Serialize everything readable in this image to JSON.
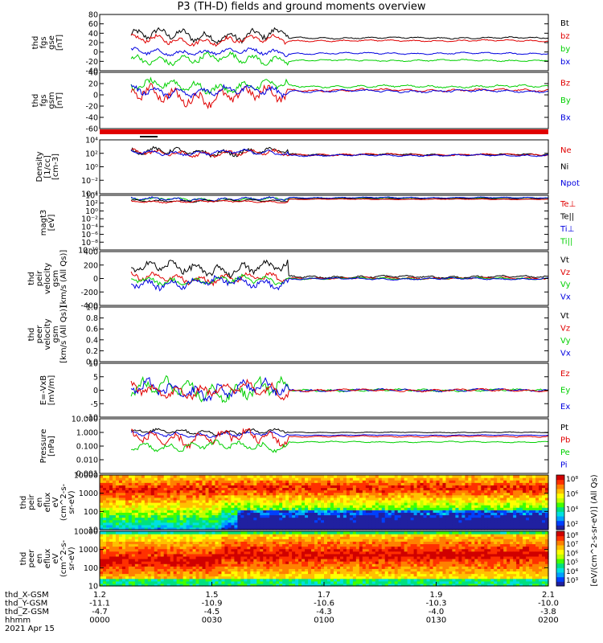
{
  "title": "P3 (TH-D) fields and ground moments overview",
  "colors": {
    "black": "#000000",
    "red": "#e00000",
    "green": "#00d000",
    "blue": "#0000e0"
  },
  "chart_data": [
    {
      "type": "line",
      "id": "fgs-gse",
      "ylabel": [
        "thd",
        "fgs",
        "gse",
        "[nT]"
      ],
      "ylim": [
        -40,
        80
      ],
      "yscale": "linear",
      "yticks": [
        "80",
        "60",
        "40",
        "20",
        "0",
        "-20",
        "-40"
      ],
      "legend": [
        {
          "name": "Bt",
          "color": "#000000"
        },
        {
          "name": "bz",
          "color": "#e00000"
        },
        {
          "name": "by",
          "color": "#00d000"
        },
        {
          "name": "bx",
          "color": "#0000e0"
        }
      ],
      "series": [
        {
          "name": "Bt",
          "color": "#000000",
          "base": 35,
          "amp": 14,
          "late_base": 30,
          "late_amp": 2
        },
        {
          "name": "bz",
          "color": "#e00000",
          "base": 25,
          "amp": 10,
          "late_base": 24,
          "late_amp": 2
        },
        {
          "name": "bx",
          "color": "#0000e0",
          "base": 0,
          "amp": 8,
          "late_base": -3,
          "late_amp": 2
        },
        {
          "name": "by",
          "color": "#00d000",
          "base": -15,
          "amp": 12,
          "late_base": -18,
          "late_amp": 2
        }
      ]
    },
    {
      "type": "line",
      "id": "fgs-gsm",
      "ylabel": [
        "thd",
        "fgs",
        "gsm",
        "[nT]"
      ],
      "ylim": [
        -80,
        40
      ],
      "yscale": "linear",
      "yticks": [
        "40",
        "20",
        "0",
        "-20",
        "-40",
        "-60"
      ],
      "legend": [
        {
          "name": "Bz",
          "color": "#e00000"
        },
        {
          "name": "By",
          "color": "#00d000"
        },
        {
          "name": "Bx",
          "color": "#0000e0"
        }
      ],
      "series": [
        {
          "name": "By",
          "color": "#00d000",
          "base": 10,
          "amp": 14,
          "late_base": 10,
          "late_amp": 3
        },
        {
          "name": "Bz",
          "color": "#e00000",
          "base": -10,
          "amp": 20,
          "late_base": 2,
          "late_amp": 3
        },
        {
          "name": "Bx",
          "color": "#0000e0",
          "base": 0,
          "amp": 12,
          "late_base": 0,
          "late_amp": 3
        }
      ]
    },
    {
      "type": "line",
      "id": "density",
      "ylabel": [
        "Density",
        "[1/cc]",
        "[cm-3]"
      ],
      "ylim": [
        -4,
        4
      ],
      "yscale": "log",
      "yticks": [
        "10⁴",
        "10²",
        "10⁰",
        "10⁻²",
        "10⁻⁴"
      ],
      "legend": [
        {
          "name": "Ne",
          "color": "#e00000"
        },
        {
          "name": "Ni",
          "color": "#000000"
        },
        {
          "name": "Npot",
          "color": "#0000e0"
        }
      ],
      "series": [
        {
          "name": "Ni",
          "color": "#000000",
          "base": 2.2,
          "amp": 0.6,
          "late_base": 1.8,
          "late_amp": 0.15
        },
        {
          "name": "Ne",
          "color": "#e00000",
          "base": 2.0,
          "amp": 0.5,
          "late_base": 1.8,
          "late_amp": 0.15
        },
        {
          "name": "Npot",
          "color": "#0000e0",
          "base": 2.1,
          "amp": 0.4,
          "late_base": 1.7,
          "late_amp": 0.15
        }
      ]
    },
    {
      "type": "line",
      "id": "temperature",
      "ylabel": [
        "magt3",
        "[eV]"
      ],
      "ylim": [
        -10,
        4
      ],
      "yscale": "log",
      "yticks": [
        "10⁴",
        "10²",
        "10⁰",
        "10⁻²",
        "10⁻⁴",
        "10⁻⁶",
        "10⁻⁸",
        "10⁻¹⁰"
      ],
      "legend": [
        {
          "name": "Te⊥",
          "color": "#e00000"
        },
        {
          "name": "Te||",
          "color": "#000000"
        },
        {
          "name": "Ti⊥",
          "color": "#0000e0"
        },
        {
          "name": "Ti||",
          "color": "#00d000"
        }
      ],
      "series": [
        {
          "name": "Ti||",
          "color": "#00d000",
          "base": 3.0,
          "amp": 0.4,
          "late_base": 3.3,
          "late_amp": 0.15
        },
        {
          "name": "Ti⊥",
          "color": "#0000e0",
          "base": 3.0,
          "amp": 0.5,
          "late_base": 3.4,
          "late_amp": 0.15
        },
        {
          "name": "Te||",
          "color": "#000000",
          "base": 2.6,
          "amp": 0.3,
          "late_base": 3.1,
          "late_amp": 0.1
        },
        {
          "name": "Te⊥",
          "color": "#e00000",
          "base": 2.4,
          "amp": 0.3,
          "late_base": 3.0,
          "late_amp": 0.1
        }
      ]
    },
    {
      "type": "line",
      "id": "peir-velocity",
      "ylabel": [
        "thd",
        "peir",
        "velocity",
        "gsm",
        "[km/s (All Qs)]"
      ],
      "ylim": [
        -400,
        400
      ],
      "yscale": "linear",
      "yticks": [
        "400",
        "200",
        "0",
        "-200",
        "-400"
      ],
      "legend": [
        {
          "name": "Vt",
          "color": "#000000"
        },
        {
          "name": "Vz",
          "color": "#e00000"
        },
        {
          "name": "Vy",
          "color": "#00d000"
        },
        {
          "name": "Vx",
          "color": "#0000e0"
        }
      ],
      "series": [
        {
          "name": "Vt",
          "color": "#000000",
          "base": 150,
          "amp": 110,
          "late_base": 25,
          "late_amp": 20
        },
        {
          "name": "Vz",
          "color": "#e00000",
          "base": 0,
          "amp": 80,
          "late_base": 5,
          "late_amp": 15
        },
        {
          "name": "Vy",
          "color": "#00d000",
          "base": -30,
          "amp": 70,
          "late_base": 0,
          "late_amp": 15
        },
        {
          "name": "Vx",
          "color": "#0000e0",
          "base": -60,
          "amp": 90,
          "late_base": -5,
          "late_amp": 15
        }
      ]
    },
    {
      "type": "line",
      "id": "peer-velocity",
      "ylabel": [
        "thd",
        "peer",
        "velocity",
        "gsm",
        "[km/s (All Qs)]"
      ],
      "ylim": [
        0,
        1
      ],
      "yscale": "linear",
      "yticks": [
        "1.0",
        "0.8",
        "0.6",
        "0.4",
        "0.2",
        "0.0"
      ],
      "legend": [
        {
          "name": "Vt",
          "color": "#000000"
        },
        {
          "name": "Vz",
          "color": "#e00000"
        },
        {
          "name": "Vy",
          "color": "#00d000"
        },
        {
          "name": "Vx",
          "color": "#0000e0"
        }
      ],
      "series": []
    },
    {
      "type": "line",
      "id": "efield",
      "ylabel": [
        "E=-VxB",
        "[mV/m]"
      ],
      "ylim": [
        -10,
        10
      ],
      "yscale": "linear",
      "yticks": [
        "10",
        "5",
        "0",
        "-5",
        "-10"
      ],
      "legend": [
        {
          "name": "Ez",
          "color": "#e00000"
        },
        {
          "name": "Ey",
          "color": "#00d000"
        },
        {
          "name": "Ex",
          "color": "#0000e0"
        }
      ],
      "series": [
        {
          "name": "Ey",
          "color": "#00d000",
          "base": 0,
          "amp": 4,
          "late_base": 0,
          "late_amp": 0.5
        },
        {
          "name": "Ex",
          "color": "#0000e0",
          "base": 0,
          "amp": 3.5,
          "late_base": 0,
          "late_amp": 0.5
        },
        {
          "name": "Ez",
          "color": "#e00000",
          "base": 0,
          "amp": 3,
          "late_base": 0,
          "late_amp": 0.5
        }
      ]
    },
    {
      "type": "line",
      "id": "pressure",
      "ylabel": [
        "Pressure",
        "[nPa]"
      ],
      "ylim": [
        -3,
        1
      ],
      "yscale": "log",
      "yticks": [
        "10.000",
        "1.000",
        "0.100",
        "0.010",
        "0.001"
      ],
      "legend": [
        {
          "name": "Pt",
          "color": "#000000"
        },
        {
          "name": "Pb",
          "color": "#e00000"
        },
        {
          "name": "Pe",
          "color": "#00d000"
        },
        {
          "name": "Pi",
          "color": "#0000e0"
        }
      ],
      "series": [
        {
          "name": "Pt",
          "color": "#000000",
          "base": 0.05,
          "amp": 0.2,
          "late_base": 0.0,
          "late_amp": 0.03
        },
        {
          "name": "Pi",
          "color": "#0000e0",
          "base": -0.15,
          "amp": 0.2,
          "late_base": -0.2,
          "late_amp": 0.03
        },
        {
          "name": "Pb",
          "color": "#e00000",
          "base": -0.4,
          "amp": 0.6,
          "late_base": -0.3,
          "late_amp": 0.05
        },
        {
          "name": "Pe",
          "color": "#00d000",
          "base": -1.0,
          "amp": 0.35,
          "late_base": -0.7,
          "late_amp": 0.05
        }
      ]
    },
    {
      "type": "heatmap",
      "id": "peir-spectrogram",
      "ylabel": [
        "thd",
        "peir",
        "en",
        "eflux",
        "eV",
        "(cm^2-s-",
        "sr-eV)"
      ],
      "ylim": [
        5,
        20000
      ],
      "yscale": "log",
      "yticks": [
        "10000",
        "1000",
        "100",
        "10"
      ],
      "colorbar": {
        "ticks": [
          "10⁸",
          "10⁶",
          "10⁴",
          "10²"
        ],
        "label": "[eV/(cm^2-s-sr-eV)] (All Qs)"
      }
    },
    {
      "type": "heatmap",
      "id": "peer-spectrogram",
      "ylabel": [
        "thd",
        "peer",
        "en",
        "eflux",
        "eV",
        "(cm^2-s-",
        "sr-eV)"
      ],
      "ylim": [
        5,
        20000
      ],
      "yscale": "log",
      "yticks": [
        "10000",
        "1000",
        "100",
        "10"
      ],
      "colorbar": {
        "ticks": [
          "10⁸",
          "10⁷",
          "10⁶",
          "10⁵",
          "10⁴",
          "10³"
        ],
        "label": "[eV/(cm^2-s-sr-eV)]"
      }
    }
  ],
  "time_axis": {
    "row_labels": [
      "thd_X-GSM",
      "thd_Y-GSM",
      "thd_Z-GSM",
      "hhmm",
      "2021 Apr 15"
    ],
    "columns": [
      [
        "1.2",
        "-11.1",
        "-4.7",
        "0000"
      ],
      [
        "1.5",
        "-10.9",
        "-4.5",
        "0030"
      ],
      [
        "1.7",
        "-10.6",
        "-4.3",
        "0100"
      ],
      [
        "1.9",
        "-10.3",
        "-4.0",
        "0130"
      ],
      [
        "2.1",
        "-10.0",
        "-3.8",
        "0200"
      ]
    ]
  }
}
